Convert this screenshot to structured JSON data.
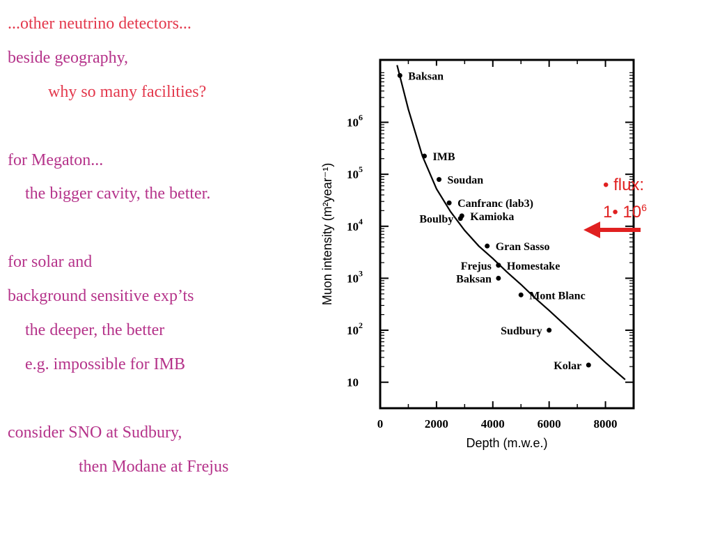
{
  "text_lines": [
    {
      "text": "...other neutrino detectors...",
      "color": "red",
      "indent": 0
    },
    {
      "text": "beside geography,",
      "color": "magenta",
      "indent": 0
    },
    {
      "text": "why so many facilities?",
      "color": "red",
      "indent": 2
    },
    {
      "text": "",
      "color": "magenta",
      "indent": 0
    },
    {
      "text": "for Megaton...",
      "color": "magenta",
      "indent": 0
    },
    {
      "text": "the bigger cavity, the better.",
      "color": "magenta",
      "indent": 1
    },
    {
      "text": "",
      "color": "magenta",
      "indent": 0
    },
    {
      "text": "for solar and",
      "color": "magenta",
      "indent": 0
    },
    {
      "text": "background sensitive exp’ts",
      "color": "magenta",
      "indent": 0
    },
    {
      "text": "the deeper, the better",
      "color": "magenta",
      "indent": 1
    },
    {
      "text": "e.g. impossible for IMB",
      "color": "magenta",
      "indent": 1
    },
    {
      "text": "",
      "color": "magenta",
      "indent": 0
    },
    {
      "text": "consider SNO at Sudbury,",
      "color": "magenta",
      "indent": 0
    },
    {
      "text": "then Modane at Frejus",
      "color": "magenta",
      "indent": 3
    }
  ],
  "flux_note": {
    "bullet": "•",
    "label": "flux:",
    "value_prefix": "1•  10",
    "value_exp": "6",
    "arrow_color": "#e02020"
  },
  "chart_data": {
    "type": "line",
    "xlabel": "Depth (m.w.e.)",
    "ylabel": "Muon intensity (m²year⁻¹)",
    "xlim": [
      0,
      9000
    ],
    "ylim_log10": [
      0.5,
      7.2
    ],
    "x_scale": "linear",
    "y_scale": "log",
    "x_ticks": [
      0,
      2000,
      4000,
      6000,
      8000
    ],
    "x_tick_labels": [
      "0",
      "2000",
      "4000",
      "6000",
      "8000"
    ],
    "y_ticks": [
      1,
      2,
      3,
      4,
      5,
      6
    ],
    "y_tick_labels": [
      {
        "base": "10",
        "exp": ""
      },
      {
        "base": "10",
        "exp": "2"
      },
      {
        "base": "10",
        "exp": "3"
      },
      {
        "base": "10",
        "exp": "4"
      },
      {
        "base": "10",
        "exp": "5"
      },
      {
        "base": "10",
        "exp": "6"
      }
    ],
    "curve": {
      "x": [
        600,
        1000,
        1500,
        2000,
        2500,
        3000,
        3500,
        4000,
        4500,
        5000,
        5500,
        6000,
        6500,
        7000,
        7500,
        8000,
        8700
      ],
      "y_log10": [
        7.1,
        6.25,
        5.35,
        4.72,
        4.28,
        3.92,
        3.62,
        3.38,
        3.12,
        2.88,
        2.62,
        2.38,
        2.13,
        1.88,
        1.63,
        1.38,
        1.05
      ]
    },
    "labs": [
      {
        "name": "Baksan",
        "x": 700,
        "y_log10": 6.9,
        "label_side": "right",
        "boxed": true
      },
      {
        "name": "IMB",
        "x": 1570,
        "y_log10": 5.35,
        "label_side": "right"
      },
      {
        "name": "Soudan",
        "x": 2090,
        "y_log10": 4.9,
        "label_side": "right"
      },
      {
        "name": "Canfranc (lab3)",
        "x": 2450,
        "y_log10": 4.45,
        "label_side": "right",
        "boxed": true
      },
      {
        "name": "Boulby",
        "x": 2850,
        "y_log10": 4.15,
        "label_side": "left"
      },
      {
        "name": "Kamioka",
        "x": 2900,
        "y_log10": 4.2,
        "label_side": "right"
      },
      {
        "name": "Gran Sasso",
        "x": 3800,
        "y_log10": 3.62,
        "label_side": "right"
      },
      {
        "name": "Frejus",
        "x": 4200,
        "y_log10": 3.25,
        "label_side": "left"
      },
      {
        "name": "Homestake",
        "x": 4200,
        "y_log10": 3.25,
        "label_side": "right"
      },
      {
        "name": "Baksan",
        "x": 4200,
        "y_log10": 3.0,
        "label_side": "left"
      },
      {
        "name": "Mont Blanc",
        "x": 5000,
        "y_log10": 2.68,
        "label_side": "right"
      },
      {
        "name": "Sudbury",
        "x": 6000,
        "y_log10": 2.0,
        "label_side": "left"
      },
      {
        "name": "Kolar",
        "x": 7400,
        "y_log10": 1.33,
        "label_side": "left"
      }
    ],
    "grid": false,
    "legend": "none"
  }
}
